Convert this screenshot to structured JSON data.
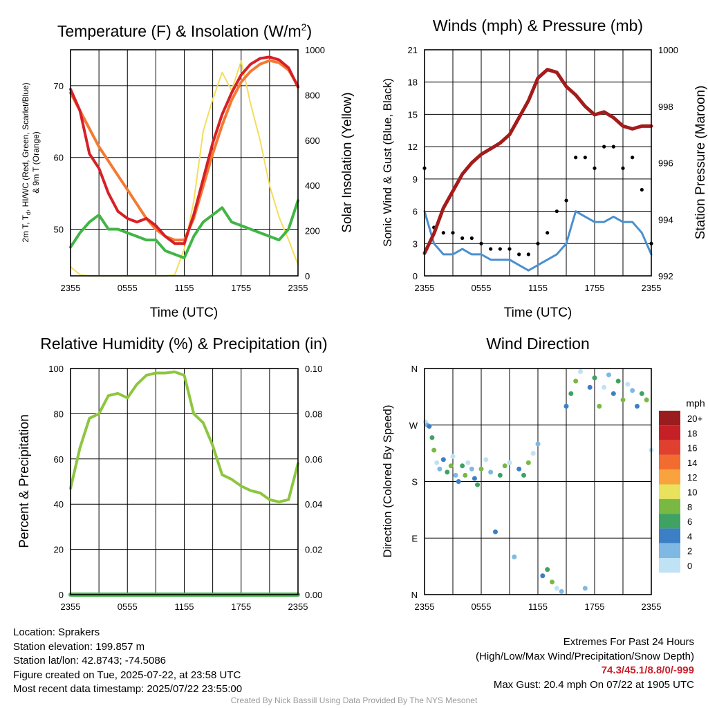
{
  "panels": {
    "temp": {
      "title_main": "Temperature (F) & Insolation (W/m",
      "title_sup": "2",
      "title_end": ")",
      "ylabel_line1_a": "2m T, T",
      "ylabel_line1_sub": "d",
      "ylabel_line1_b": ", HI/WC (Red, Green, Scarlet/Blue)",
      "ylabel_line2": "& 9m T (Orange)",
      "y2label": "Solar Insolation (Yellow)",
      "xlabel": "Time (UTC)"
    },
    "wind": {
      "title": "Winds (mph) & Pressure (mb)",
      "ylabel": "Sonic Wind & Gust (Blue, Black)",
      "y2label": "Station Pressure (Maroon)",
      "xlabel": "Time (UTC)"
    },
    "rh": {
      "title": "Relative Humidity (%) & Precipitation (in)",
      "ylabel": "Percent & Precipitation"
    },
    "dir": {
      "title": "Wind Direction",
      "ylabel": "Direction (Colored By Speed)",
      "legend_title": "mph"
    }
  },
  "chart_data": [
    {
      "type": "line",
      "title": "Temperature (F) & Insolation (W/m2)",
      "xlabel": "Time (UTC)",
      "ylabel": "2m T, Td, HI/WC (Red, Green, Scarlet/Blue) & 9m T (Orange)",
      "y2label": "Solar Insolation (Yellow)",
      "x_ticks": [
        "2355",
        "0555",
        "1155",
        "1755",
        "2355"
      ],
      "y_ticks": [
        50,
        60,
        70
      ],
      "y2_ticks": [
        0,
        200,
        400,
        600,
        800,
        1000
      ],
      "ylim": [
        43.5,
        75
      ],
      "y2lim": [
        0,
        1000
      ],
      "x_hours": [
        0,
        1,
        2,
        3,
        4,
        5,
        6,
        7,
        8,
        9,
        10,
        11,
        12,
        13,
        14,
        15,
        16,
        17,
        18,
        19,
        20,
        21,
        22,
        23,
        24
      ],
      "series": [
        {
          "color": "#d62027",
          "values": [
            69.5,
            66.5,
            60.5,
            58.5,
            55.0,
            52.5,
            51.5,
            51.0,
            51.5,
            50.5,
            49.0,
            48.0,
            48.0,
            52.0,
            57.0,
            62.0,
            66.0,
            69.0,
            71.5,
            73.0,
            73.8,
            74.0,
            73.6,
            72.5,
            69.8
          ]
        },
        {
          "color": "#f47a33",
          "values": [
            69.0,
            66.5,
            64.0,
            61.5,
            59.5,
            57.5,
            55.5,
            53.5,
            51.5,
            50.0,
            49.0,
            48.5,
            48.5,
            51.5,
            56.0,
            60.5,
            64.5,
            68.0,
            70.5,
            72.0,
            73.0,
            73.5,
            73.2,
            72.2,
            70.0
          ]
        },
        {
          "color": "#41b546",
          "values": [
            47.5,
            49.5,
            51.0,
            52.0,
            50.0,
            50.0,
            49.5,
            49.0,
            48.5,
            48.5,
            47.0,
            46.5,
            46.0,
            49.0,
            51.0,
            52.0,
            53.0,
            51.0,
            50.5,
            50.0,
            49.5,
            49.0,
            48.5,
            50.0,
            54.0
          ]
        },
        {
          "color": "#f3de5b",
          "values": [
            40,
            5,
            0,
            0,
            0,
            0,
            0,
            0,
            0,
            0,
            0,
            5,
            120,
            330,
            640,
            780,
            900,
            820,
            950,
            760,
            600,
            400,
            260,
            160,
            50
          ]
        }
      ]
    },
    {
      "type": "line",
      "title": "Winds (mph) & Pressure (mb)",
      "xlabel": "Time (UTC)",
      "ylabel": "Sonic Wind & Gust (Blue, Black)",
      "y2label": "Station Pressure (Maroon)",
      "x_ticks": [
        "2355",
        "0555",
        "1155",
        "1755",
        "2355"
      ],
      "y_ticks": [
        0,
        3,
        6,
        9,
        12,
        15,
        18,
        21
      ],
      "y2_ticks": [
        992,
        994,
        996,
        998,
        1000
      ],
      "ylim": [
        0,
        21
      ],
      "y2lim": [
        992,
        1000
      ],
      "x_hours": [
        0,
        1,
        2,
        3,
        4,
        5,
        6,
        7,
        8,
        9,
        10,
        11,
        12,
        13,
        14,
        15,
        16,
        17,
        18,
        19,
        20,
        21,
        22,
        23,
        24
      ],
      "series": [
        {
          "color": "#4a90cf",
          "values": [
            6,
            3,
            2,
            2,
            2.5,
            2,
            2,
            1.5,
            1.5,
            1.5,
            1,
            0.5,
            1,
            1.5,
            2,
            3,
            6,
            5.5,
            5,
            5,
            5.5,
            5,
            5,
            4,
            2
          ]
        },
        {
          "color": "#000000",
          "values": [
            10,
            4.5,
            4,
            4,
            3.5,
            3.5,
            3,
            2.5,
            2.5,
            2.5,
            2,
            2,
            3,
            4,
            6,
            7,
            11,
            11,
            10,
            12,
            12,
            10,
            11,
            8,
            3
          ]
        },
        {
          "color": "#a31c1c",
          "values": [
            992.8,
            993.5,
            994.4,
            995.0,
            995.6,
            996.0,
            996.3,
            996.5,
            996.7,
            997.0,
            997.6,
            998.2,
            999.0,
            999.3,
            999.2,
            998.7,
            998.4,
            998.0,
            997.7,
            997.8,
            997.6,
            997.3,
            997.2,
            997.3,
            997.3
          ]
        }
      ]
    },
    {
      "type": "line",
      "title": "Relative Humidity (%) & Precipitation (in)",
      "ylabel": "Percent & Precipitation",
      "x_ticks": [
        "2355",
        "0555",
        "1155",
        "1755",
        "2355"
      ],
      "y_ticks": [
        0,
        20,
        40,
        60,
        80,
        100
      ],
      "y2_ticks": [
        "0.00",
        "0.02",
        "0.04",
        "0.06",
        "0.08",
        "0.10"
      ],
      "ylim": [
        0,
        100
      ],
      "y2lim": [
        0,
        0.1
      ],
      "x_hours": [
        0,
        1,
        2,
        3,
        4,
        5,
        6,
        7,
        8,
        9,
        10,
        11,
        12,
        13,
        14,
        15,
        16,
        17,
        18,
        19,
        20,
        21,
        22,
        23,
        24
      ],
      "series": [
        {
          "color": "#8dc63f",
          "values": [
            47,
            65,
            78,
            80,
            88,
            89,
            87,
            93,
            97,
            98,
            98,
            98.5,
            97,
            80,
            76,
            66,
            53,
            51,
            48,
            46,
            45,
            42,
            41,
            42,
            58
          ]
        },
        {
          "color": "#41b546",
          "values": [
            0,
            0,
            0,
            0,
            0,
            0,
            0,
            0,
            0,
            0,
            0,
            0,
            0,
            0,
            0,
            0,
            0,
            0,
            0,
            0,
            0,
            0,
            0,
            0,
            0
          ]
        }
      ]
    },
    {
      "type": "scatter",
      "title": "Wind Direction",
      "ylabel": "Direction (Colored By Speed)",
      "x_ticks": [
        "2355",
        "0555",
        "1155",
        "1755",
        "2355"
      ],
      "y_ticks": [
        "N",
        "E",
        "S",
        "W",
        "N"
      ],
      "ylim": [
        0,
        360
      ],
      "legend_title": "mph",
      "legend_labels": [
        "20+",
        "18",
        "16",
        "14",
        "12",
        "10",
        "8",
        "6",
        "4",
        "2",
        "0"
      ],
      "legend_colors": [
        "#9b1c1f",
        "#c62027",
        "#e0412f",
        "#f26b2f",
        "#f9a33f",
        "#e9e25c",
        "#7ab844",
        "#3fa263",
        "#3d7fc4",
        "#7fb8e3",
        "#bfe3f5"
      ],
      "points": [
        {
          "x": 0.1,
          "y": 275
        },
        {
          "x": 0.3,
          "y": 270
        },
        {
          "x": 0.5,
          "y": 268
        },
        {
          "x": 0.8,
          "y": 250
        },
        {
          "x": 1.0,
          "y": 230
        },
        {
          "x": 1.3,
          "y": 210
        },
        {
          "x": 1.6,
          "y": 200
        },
        {
          "x": 2.0,
          "y": 215
        },
        {
          "x": 2.4,
          "y": 195
        },
        {
          "x": 2.8,
          "y": 205
        },
        {
          "x": 3.0,
          "y": 220
        },
        {
          "x": 3.3,
          "y": 190
        },
        {
          "x": 3.6,
          "y": 180
        },
        {
          "x": 4.0,
          "y": 205
        },
        {
          "x": 4.3,
          "y": 190
        },
        {
          "x": 4.6,
          "y": 210
        },
        {
          "x": 5.0,
          "y": 200
        },
        {
          "x": 5.3,
          "y": 185
        },
        {
          "x": 5.6,
          "y": 175
        },
        {
          "x": 6.0,
          "y": 200
        },
        {
          "x": 6.5,
          "y": 215
        },
        {
          "x": 7.0,
          "y": 195
        },
        {
          "x": 7.5,
          "y": 100
        },
        {
          "x": 8.0,
          "y": 190
        },
        {
          "x": 8.5,
          "y": 205
        },
        {
          "x": 9.0,
          "y": 210
        },
        {
          "x": 9.5,
          "y": 60
        },
        {
          "x": 10.0,
          "y": 200
        },
        {
          "x": 10.5,
          "y": 190
        },
        {
          "x": 11.0,
          "y": 210
        },
        {
          "x": 11.5,
          "y": 225
        },
        {
          "x": 12.0,
          "y": 240
        },
        {
          "x": 12.5,
          "y": 30
        },
        {
          "x": 13.0,
          "y": 40
        },
        {
          "x": 13.5,
          "y": 20
        },
        {
          "x": 14.0,
          "y": 10
        },
        {
          "x": 14.5,
          "y": 5
        },
        {
          "x": 15.0,
          "y": 300
        },
        {
          "x": 15.5,
          "y": 320
        },
        {
          "x": 16.0,
          "y": 340
        },
        {
          "x": 16.5,
          "y": 355
        },
        {
          "x": 17.0,
          "y": 10
        },
        {
          "x": 17.5,
          "y": 330
        },
        {
          "x": 18.0,
          "y": 345
        },
        {
          "x": 18.5,
          "y": 300
        },
        {
          "x": 19.0,
          "y": 330
        },
        {
          "x": 19.5,
          "y": 350
        },
        {
          "x": 20.0,
          "y": 320
        },
        {
          "x": 20.5,
          "y": 340
        },
        {
          "x": 21.0,
          "y": 310
        },
        {
          "x": 21.5,
          "y": 335
        },
        {
          "x": 22.0,
          "y": 325
        },
        {
          "x": 22.5,
          "y": 300
        },
        {
          "x": 23.0,
          "y": 320
        },
        {
          "x": 23.5,
          "y": 310
        },
        {
          "x": 24.0,
          "y": 230
        }
      ]
    }
  ],
  "info": {
    "location": "Location: Sprakers",
    "elevation": "Station elevation: 199.857 m",
    "latlon": "Station lat/lon: 42.8743; -74.5086",
    "created": "Figure created on Tue, 2025-07-22, at 23:58 UTC",
    "recent": "Most recent data timestamp: 2025/07/22 23:55:00"
  },
  "extremes": {
    "title": "Extremes For Past 24 Hours",
    "subtitle": "(High/Low/Max Wind/Precipitation/Snow Depth)",
    "values": "74.3/45.1/8.8/0/-999",
    "max_gust": "Max Gust: 20.4 mph On 07/22 at 1905 UTC"
  },
  "credit": "Created By Nick Bassill Using Data Provided By The NYS Mesonet"
}
